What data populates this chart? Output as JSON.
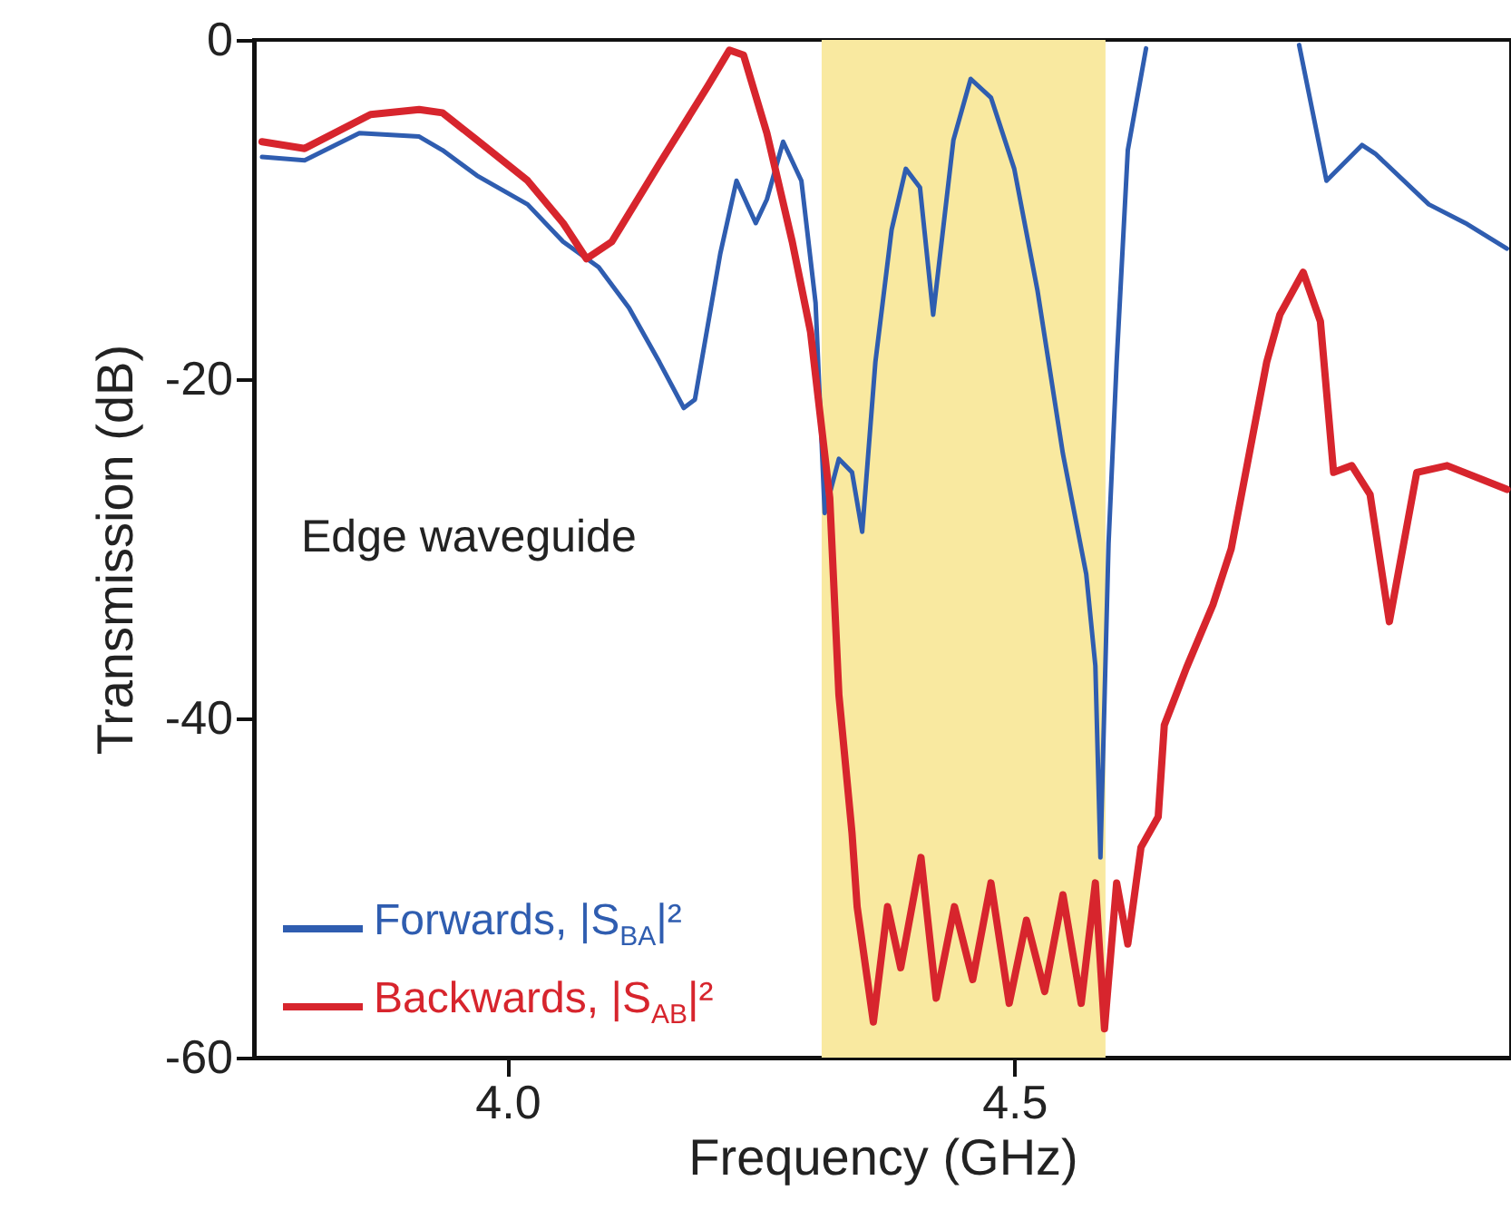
{
  "chart_data": {
    "type": "line",
    "xlabel": "Frequency (GHz)",
    "ylabel": "Transmission (dB)",
    "xlim": [
      3.75,
      4.99
    ],
    "xticks": [
      {
        "value": 4,
        "label": "4.0"
      },
      {
        "value": 4.5,
        "label": "4.5"
      }
    ],
    "ylim": [
      -60,
      0
    ],
    "yticks": [
      0,
      -20,
      -40,
      -60
    ],
    "grid": false,
    "legend": "bottom left",
    "annotations": [
      "Edge waveguide"
    ],
    "bands": [
      {
        "axis": "x",
        "from": 4.31,
        "to": 4.59,
        "color": "#f9e9a0"
      }
    ],
    "series": [
      {
        "name": "Forwards, |S$_{BA}$|²",
        "color": "#2f5db0",
        "x": [
          3.758,
          3.8,
          3.854,
          3.913,
          3.936,
          3.97,
          4.02,
          4.055,
          4.09,
          4.12,
          4.15,
          4.174,
          4.185,
          4.21,
          4.226,
          4.245,
          4.256,
          4.272,
          4.29,
          4.304,
          4.313,
          4.327,
          4.34,
          4.35,
          4.363,
          4.379,
          4.393,
          4.407,
          4.42,
          4.44,
          4.457,
          4.477,
          4.5,
          4.523,
          4.548,
          4.571,
          4.58,
          4.585,
          4.593,
          4.601,
          4.612,
          4.63,
          4.7,
          4.781,
          4.808,
          4.843,
          4.856,
          4.909,
          4.945,
          4.986
        ],
        "values": [
          -6.9,
          -7.1,
          -5.5,
          -5.7,
          -6.5,
          -8,
          -9.7,
          -11.9,
          -13.4,
          -15.8,
          -19,
          -21.7,
          -21.2,
          -12.6,
          -8.3,
          -10.8,
          -9.4,
          -6,
          -8.3,
          -15.5,
          -27.9,
          -24.7,
          -25.5,
          -29,
          -19,
          -11.2,
          -7.6,
          -8.7,
          -16.2,
          -5.9,
          -2.3,
          -3.4,
          -7.6,
          -14.8,
          -24.4,
          -31.5,
          -36.9,
          -48.2,
          -29.7,
          -19,
          -6.5,
          -0.5,
          null,
          -0.3,
          -8.3,
          -6.2,
          -6.7,
          -9.7,
          -10.8,
          -12.3
        ]
      },
      {
        "name": "Backwards, |S$_{AB}$|²",
        "color": "#d7252d",
        "x": [
          3.758,
          3.8,
          3.865,
          3.913,
          3.936,
          3.97,
          4.02,
          4.055,
          4.078,
          4.103,
          4.15,
          4.198,
          4.219,
          4.233,
          4.256,
          4.281,
          4.299,
          4.318,
          4.327,
          4.34,
          4.345,
          4.361,
          4.375,
          4.388,
          4.408,
          4.423,
          4.441,
          4.459,
          4.477,
          4.495,
          4.512,
          4.53,
          4.548,
          4.566,
          4.58,
          4.589,
          4.601,
          4.612,
          4.625,
          4.642,
          4.648,
          4.67,
          4.696,
          4.714,
          4.749,
          4.762,
          4.785,
          4.802,
          4.815,
          4.833,
          4.851,
          4.87,
          4.897,
          4.927,
          4.986
        ],
        "values": [
          -6,
          -6.4,
          -4.4,
          -4.1,
          -4.3,
          -5.9,
          -8.3,
          -10.8,
          -12.9,
          -11.9,
          -7.3,
          -2.7,
          -0.6,
          -0.9,
          -5.5,
          -11.9,
          -17.2,
          -27,
          -38.6,
          -46.8,
          -51.1,
          -57.9,
          -51.1,
          -54.7,
          -48.2,
          -56.5,
          -51.1,
          -55.4,
          -49.7,
          -56.8,
          -51.9,
          -56.1,
          -50.4,
          -56.8,
          -49.7,
          -58.3,
          -49.7,
          -53.3,
          -47.6,
          -45.8,
          -40.4,
          -37,
          -33.3,
          -30,
          -19,
          -16.2,
          -13.7,
          -16.6,
          -25.5,
          -25.1,
          -26.8,
          -34.3,
          -25.5,
          -25.1,
          -26.5
        ]
      }
    ]
  }
}
